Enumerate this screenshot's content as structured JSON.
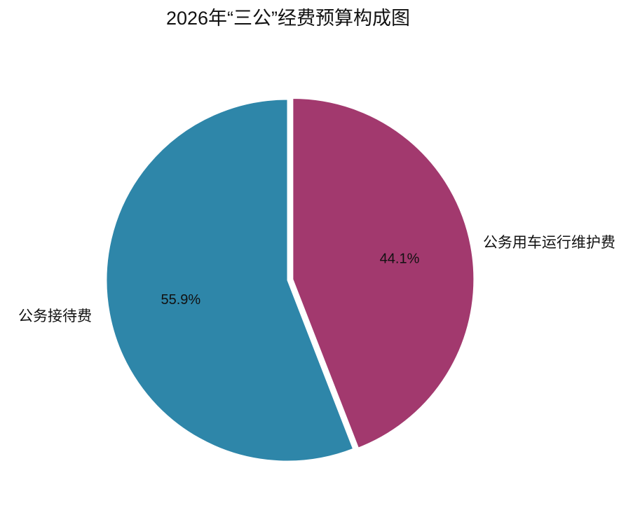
{
  "chart_data": {
    "type": "pie",
    "title": "2026年“三公”经费预算构成图",
    "categories": [
      "公务用车运行维护费",
      "公务接待费"
    ],
    "values": [
      44.1,
      55.9
    ],
    "value_labels": [
      "44.1%",
      "55.9%"
    ],
    "colors": [
      "#a2396e",
      "#2e86a9"
    ]
  }
}
